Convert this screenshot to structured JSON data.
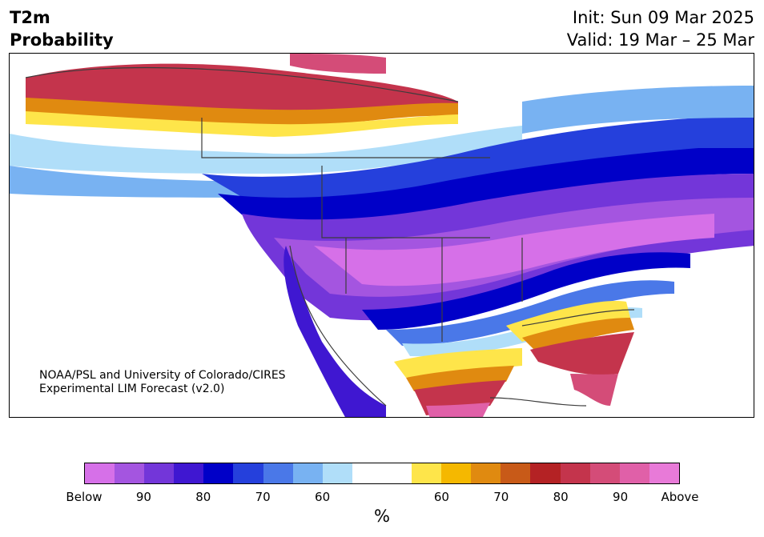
{
  "header": {
    "variable": "T2m",
    "metric": "Probability",
    "init": "Init: Sun 09 Mar 2025",
    "valid": "Valid: 19 Mar – 25 Mar"
  },
  "credit": {
    "line1": "NOAA/PSL and University of Colorado/CIRES",
    "line2": "Experimental LIM Forecast (v2.0)"
  },
  "colorbar": {
    "colors": [
      "#d670e8",
      "#a455e0",
      "#7336d9",
      "#3f17d1",
      "#0000c8",
      "#2540dc",
      "#4a78e8",
      "#78b2f2",
      "#b0def9",
      "#ffffff",
      "#ffffff",
      "#fee54a",
      "#f5b800",
      "#e08a10",
      "#c85a18",
      "#b42224",
      "#c4344c",
      "#d44c78",
      "#e060a8",
      "#e87ad8"
    ],
    "tick_labels": [
      "Below",
      "90",
      "80",
      "70",
      "60",
      "60",
      "70",
      "80",
      "90",
      "Above"
    ],
    "unit": "%"
  },
  "colors": {
    "ocean": "#ffffff",
    "border": "#3c3c3c"
  }
}
